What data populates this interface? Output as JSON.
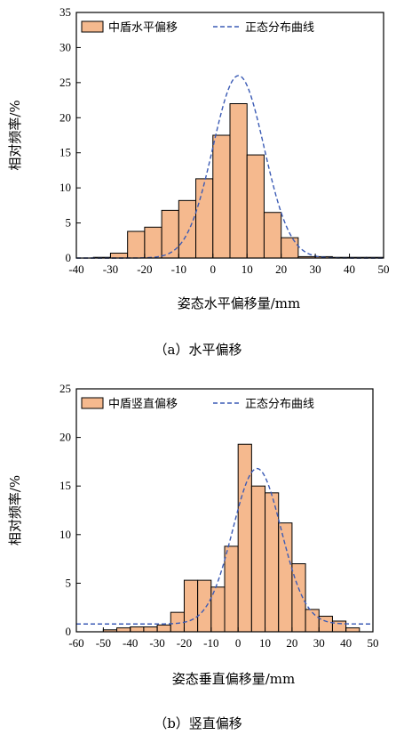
{
  "chart_data": [
    {
      "type": "bar",
      "caption": "（a）水平偏移",
      "xlabel": "姿态水平偏移量/mm",
      "ylabel": "相对频率/%",
      "xlim": [
        -40,
        50
      ],
      "ylim": [
        0,
        35
      ],
      "xticks": [
        "-40",
        "-30",
        "-20",
        "-10",
        "0",
        "10",
        "20",
        "30",
        "40",
        "50"
      ],
      "yticks": [
        "0",
        "5",
        "10",
        "15",
        "20",
        "25",
        "30",
        "35"
      ],
      "bin_width": 5,
      "bins": [
        -35,
        -30,
        -25,
        -20,
        -15,
        -10,
        -5,
        0,
        5,
        10,
        15,
        20,
        25,
        30,
        35,
        40,
        45
      ],
      "values": [
        0.1,
        0.7,
        3.8,
        4.4,
        6.8,
        8.2,
        11.3,
        17.5,
        22.0,
        14.7,
        6.5,
        2.9,
        0.2,
        0.2,
        0.1,
        0.1,
        0.1
      ],
      "legend": {
        "bar": "中盾水平偏移",
        "curve": "正态分布曲线"
      },
      "curve": {
        "mu": 7.5,
        "sigma": 7.5,
        "peak": 26
      }
    },
    {
      "type": "bar",
      "caption": "（b）竖直偏移",
      "xlabel": "姿态垂直偏移量/mm",
      "ylabel": "相对频率/%",
      "xlim": [
        -60,
        50
      ],
      "ylim": [
        0,
        25
      ],
      "xticks": [
        "-60",
        "-50",
        "-40",
        "-30",
        "-20",
        "-10",
        "0",
        "10",
        "20",
        "30",
        "40",
        "50"
      ],
      "yticks": [
        "0",
        "5",
        "10",
        "15",
        "20",
        "25"
      ],
      "bin_width": 5,
      "bins": [
        -50,
        -45,
        -40,
        -35,
        -30,
        -25,
        -20,
        -15,
        -10,
        -5,
        0,
        5,
        10,
        15,
        20,
        25,
        30,
        35,
        40
      ],
      "values": [
        0.2,
        0.4,
        0.5,
        0.5,
        0.7,
        2.0,
        5.3,
        5.3,
        4.6,
        8.8,
        19.3,
        15.0,
        14.3,
        11.2,
        7.0,
        2.3,
        1.6,
        1.1,
        0.4
      ],
      "legend": {
        "bar": "中盾竖直偏移",
        "curve": "正态分布曲线"
      },
      "curve": {
        "mu": 7,
        "sigma": 9,
        "peak": 16.8,
        "baseline": 0.8
      }
    }
  ],
  "colors": {
    "bar_fill": "#f5b98e",
    "bar_stroke": "#000000",
    "curve": "#3b5bb5"
  }
}
